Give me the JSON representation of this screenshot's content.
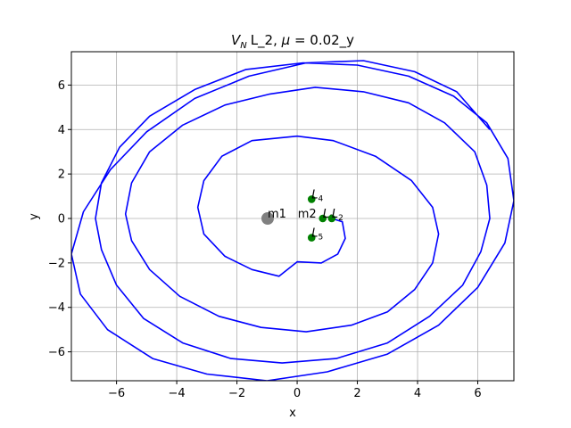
{
  "chart_data": {
    "type": "line",
    "title_parts": [
      "V",
      "N",
      "L_2, ",
      "μ",
      " = 0.02_y"
    ],
    "xlabel": "x",
    "ylabel": "y",
    "xlim": [
      -7.5,
      7.2
    ],
    "ylim": [
      -7.3,
      7.5
    ],
    "xticks": [
      -6,
      -4,
      -2,
      0,
      2,
      4,
      6
    ],
    "yticks": [
      -6,
      -4,
      -2,
      0,
      2,
      4,
      6
    ],
    "xtick_labels": [
      "−6",
      "−4",
      "−2",
      "0",
      "2",
      "4",
      "6"
    ],
    "ytick_labels": [
      "−6",
      "−4",
      "−2",
      "0",
      "2",
      "4",
      "6"
    ],
    "grid": true,
    "series": [
      {
        "color": "#0000ff",
        "x": [
          1.15,
          1.5,
          1.6,
          1.35,
          0.8,
          0.0,
          -0.6,
          -1.5,
          -2.4,
          -3.1,
          -3.3,
          -3.1,
          -2.5,
          -1.5,
          0.0,
          1.2,
          2.6,
          3.8,
          4.5,
          4.7,
          4.5,
          3.9,
          3.0,
          1.8,
          0.3,
          -1.2,
          -2.6,
          -3.9,
          -4.9,
          -5.5,
          -5.7,
          -5.5,
          -4.9,
          -3.8,
          -2.4,
          -0.9,
          0.6,
          2.2,
          3.7,
          4.9,
          5.9,
          6.3,
          6.4,
          6.1,
          5.5,
          4.4,
          3.0,
          1.3,
          -0.5,
          -2.2,
          -3.8,
          -5.1,
          -6.0,
          -6.5,
          -6.7,
          -6.5,
          -5.9,
          -4.9,
          -3.4,
          -1.7,
          0.2,
          2.0,
          3.7,
          5.2,
          6.3,
          7.0,
          7.2,
          6.9,
          6.0,
          4.7,
          3.0,
          1.0,
          -1.0,
          -3.0,
          -4.8,
          -6.3,
          -7.2,
          -7.5,
          -7.1,
          -6.2,
          -5.0,
          -3.4,
          -1.6,
          0.3,
          2.2,
          3.9,
          5.3,
          6.4
        ],
        "y": [
          0.0,
          -0.15,
          -0.9,
          -1.6,
          -2.0,
          -1.95,
          -2.6,
          -2.3,
          -1.7,
          -0.7,
          0.5,
          1.7,
          2.8,
          3.5,
          3.7,
          3.5,
          2.8,
          1.7,
          0.5,
          -0.7,
          -2.0,
          -3.2,
          -4.2,
          -4.8,
          -5.1,
          -4.9,
          -4.4,
          -3.5,
          -2.3,
          -1.0,
          0.2,
          1.6,
          3.0,
          4.2,
          5.1,
          5.6,
          5.9,
          5.7,
          5.2,
          4.3,
          3.0,
          1.5,
          0.0,
          -1.5,
          -3.0,
          -4.4,
          -5.6,
          -6.3,
          -6.5,
          -6.3,
          -5.6,
          -4.5,
          -3.0,
          -1.4,
          0.0,
          1.6,
          3.2,
          4.6,
          5.8,
          6.7,
          7.0,
          6.9,
          6.4,
          5.5,
          4.3,
          2.7,
          0.8,
          -1.1,
          -3.1,
          -4.8,
          -6.1,
          -6.9,
          -7.3,
          -7.0,
          -6.3,
          -5.0,
          -3.4,
          -1.6,
          0.3,
          2.2,
          3.9,
          5.4,
          6.4,
          7.0,
          7.1,
          6.6,
          5.7,
          4.0
        ]
      }
    ],
    "primaries": [
      {
        "label": "m1",
        "x": -0.98,
        "y": 0.0,
        "color": "#808080",
        "size": "large"
      },
      {
        "label": "m2",
        "x": 0.02,
        "y": 0.0,
        "color": "#808080",
        "size": "none"
      }
    ],
    "lagrange_points": [
      {
        "label": "L",
        "sub": "4",
        "x": 0.48,
        "y": 0.866,
        "color": "#008000"
      },
      {
        "label": "L",
        "sub": "1",
        "x": 0.85,
        "y": 0.0,
        "color": "#008000"
      },
      {
        "label": "L",
        "sub": "2",
        "x": 1.15,
        "y": 0.0,
        "color": "#008000"
      },
      {
        "label": "L",
        "sub": "5",
        "x": 0.48,
        "y": -0.866,
        "color": "#008000"
      }
    ]
  }
}
